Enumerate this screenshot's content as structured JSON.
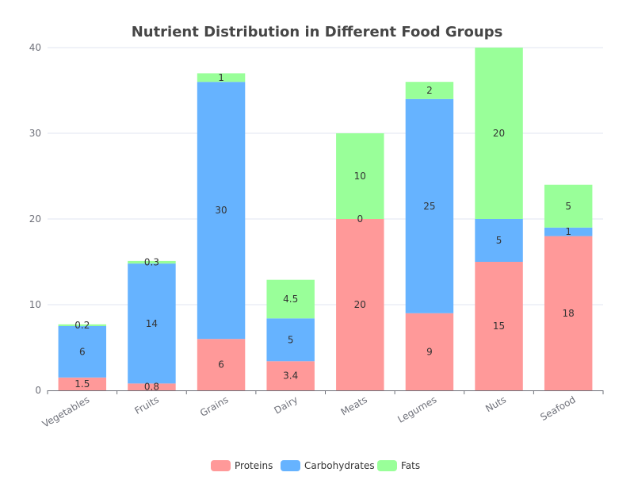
{
  "chart_data": {
    "type": "bar",
    "stacked": true,
    "title": "Nutrient Distribution in Different Food Groups",
    "categories": [
      "Vegetables",
      "Fruits",
      "Grains",
      "Dairy",
      "Meats",
      "Legumes",
      "Nuts",
      "Seafood"
    ],
    "series": [
      {
        "name": "Proteins",
        "color": "#ff9999",
        "values": [
          1.5,
          0.8,
          6,
          3.4,
          20,
          9,
          15,
          18
        ]
      },
      {
        "name": "Carbohydrates",
        "color": "#66b3ff",
        "values": [
          6,
          14,
          30,
          5,
          0,
          25,
          5,
          1
        ]
      },
      {
        "name": "Fats",
        "color": "#99ff99",
        "values": [
          0.2,
          0.3,
          1,
          4.5,
          10,
          2,
          20,
          5
        ]
      }
    ],
    "ylim": [
      0,
      40
    ],
    "yticks": [
      0,
      10,
      20,
      30,
      40
    ],
    "grid": true,
    "legend_position": "bottom"
  }
}
